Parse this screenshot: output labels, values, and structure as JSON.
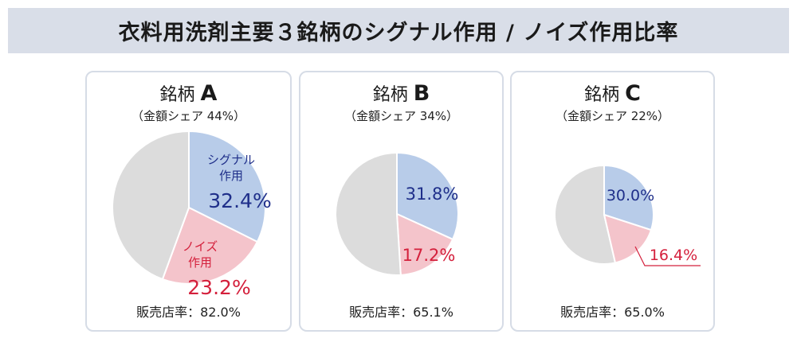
{
  "title": "衣料用洗剤主要３銘柄のシグナル作用 / ノイズ作用比率",
  "colors": {
    "signal": "#b8cce9",
    "noise": "#f4c4cb",
    "other": "#dcdcdc",
    "signal_text": "#1f2f8a",
    "noise_text": "#d4203c",
    "title_bg": "#d9dee8"
  },
  "chart_data": [
    {
      "type": "pie",
      "brand_prefix": "銘柄",
      "brand_letter": "A",
      "share_text": "（金額シェア 44%）",
      "sales_rate_text": "販売店率：82.0%",
      "slices": [
        {
          "name": "シグナル作用",
          "value": 32.4,
          "label": "32.4%"
        },
        {
          "name": "ノイズ作用",
          "value": 23.2,
          "label": "23.2%"
        },
        {
          "name": "other",
          "value": 44.4,
          "label": ""
        }
      ],
      "inline_names": {
        "signal_line1": "シグナル",
        "signal_line2": "作用",
        "noise_line1": "ノイズ",
        "noise_line2": "作用"
      }
    },
    {
      "type": "pie",
      "brand_prefix": "銘柄",
      "brand_letter": "B",
      "share_text": "（金額シェア 34%）",
      "sales_rate_text": "販売店率：65.1%",
      "slices": [
        {
          "name": "シグナル作用",
          "value": 31.8,
          "label": "31.8%"
        },
        {
          "name": "ノイズ作用",
          "value": 17.2,
          "label": "17.2%"
        },
        {
          "name": "other",
          "value": 51.0,
          "label": ""
        }
      ]
    },
    {
      "type": "pie",
      "brand_prefix": "銘柄",
      "brand_letter": "C",
      "share_text": "（金額シェア 22%）",
      "sales_rate_text": "販売店率：65.0%",
      "slices": [
        {
          "name": "シグナル作用",
          "value": 30.0,
          "label": "30.0%"
        },
        {
          "name": "ノイズ作用",
          "value": 16.4,
          "label": "16.4%"
        },
        {
          "name": "other",
          "value": 53.6,
          "label": ""
        }
      ]
    }
  ]
}
